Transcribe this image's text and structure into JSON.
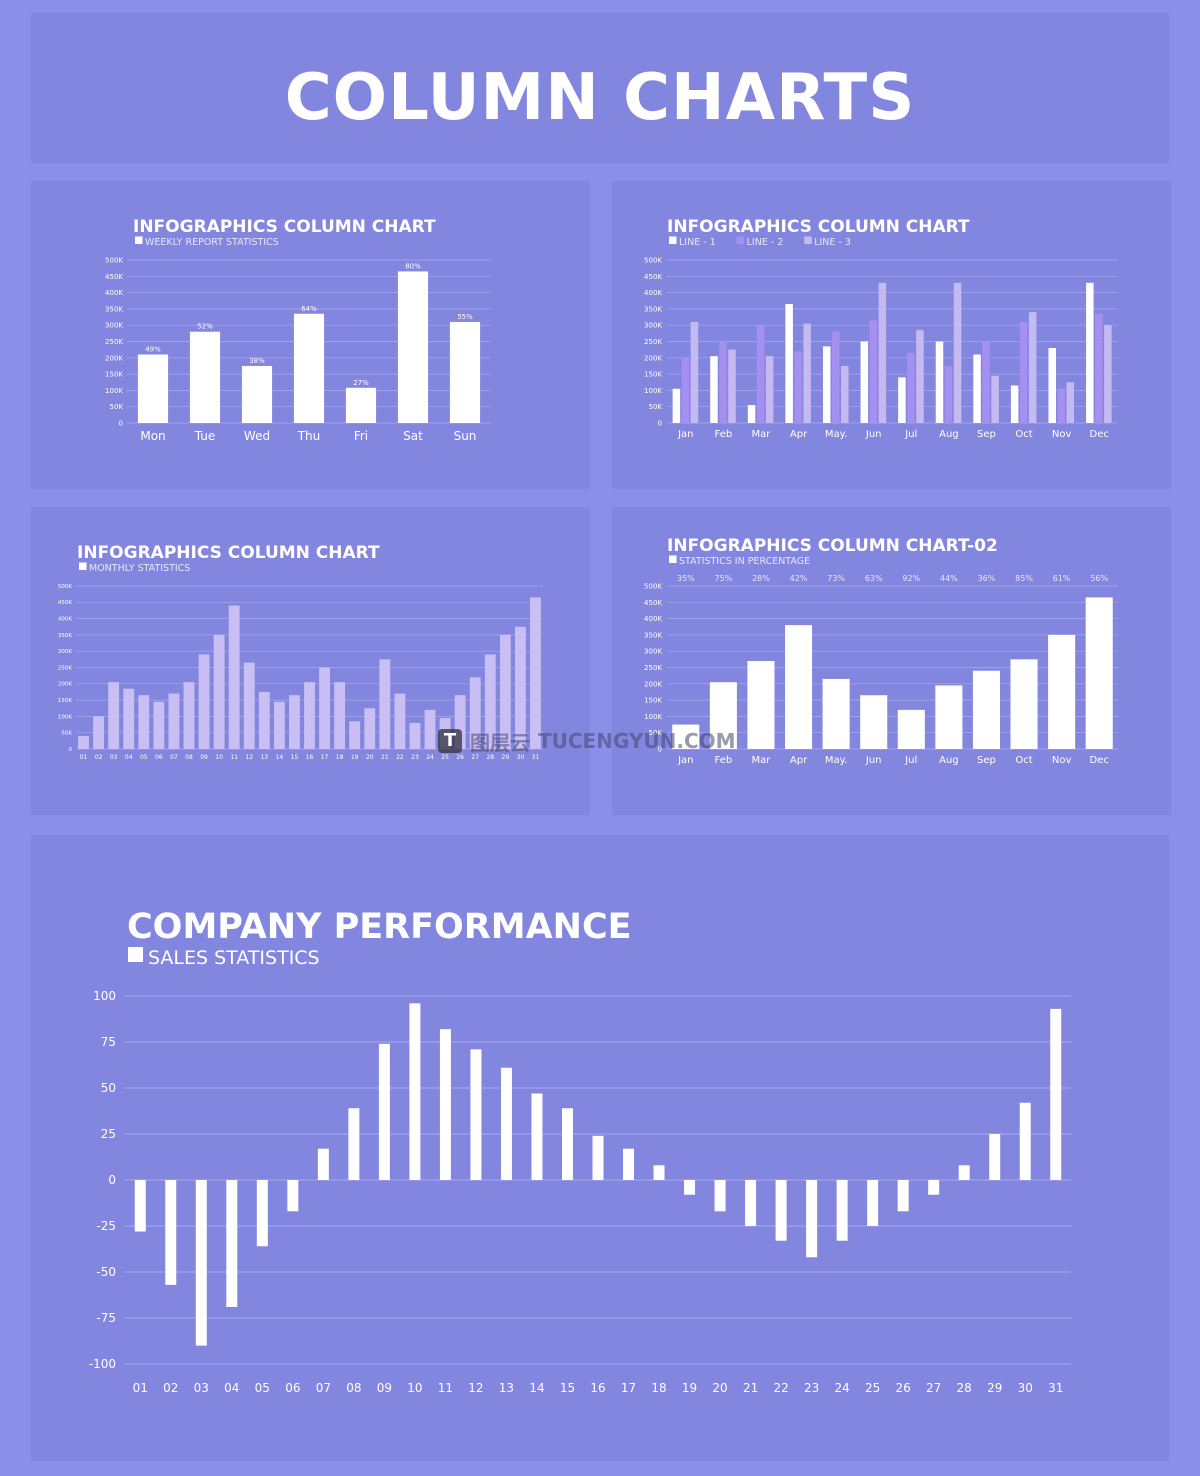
{
  "header": {
    "title": "COLUMN CHARTS"
  },
  "watermark": {
    "mark": "T",
    "cn": "图层云",
    "text": "TUCENGYUN.COM"
  },
  "colors": {
    "background": "#8a8fe9",
    "panel": "#8286df",
    "bar_white": "#ffffff",
    "line2": "#a58ff0",
    "line3": "#c5b9f2",
    "monthly_bar": "#c9bff4",
    "grid": "#a6aaf0"
  },
  "chart_data": [
    {
      "id": "weekly",
      "type": "bar",
      "title": "INFOGRAPHICS COLUMN CHART",
      "legend": [
        "WEEKLY REPORT STATISTICS"
      ],
      "y_ticks": [
        "0",
        "50K",
        "100K",
        "150K",
        "200K",
        "250K",
        "300K",
        "350K",
        "400K",
        "450K",
        "500K"
      ],
      "ylim": [
        0,
        500
      ],
      "categories": [
        "Mon",
        "Tue",
        "Wed",
        "Thu",
        "Fri",
        "Sat",
        "Sun"
      ],
      "values": [
        210,
        280,
        175,
        335,
        108,
        465,
        310
      ],
      "data_labels": [
        "49%",
        "52%",
        "38%",
        "64%",
        "27%",
        "80%",
        "55%"
      ]
    },
    {
      "id": "lines",
      "type": "bar",
      "title": "INFOGRAPHICS COLUMN CHART",
      "legend": [
        "LINE - 1",
        "LINE - 2",
        "LINE - 3"
      ],
      "y_ticks": [
        "0",
        "50K",
        "100K",
        "150K",
        "200K",
        "250K",
        "300K",
        "350K",
        "400K",
        "450K",
        "500K"
      ],
      "ylim": [
        0,
        500
      ],
      "categories": [
        "Jan",
        "Feb",
        "Mar",
        "Apr",
        "May.",
        "Jun",
        "Jul",
        "Aug",
        "Sep",
        "Oct",
        "Nov",
        "Dec"
      ],
      "series": [
        {
          "name": "LINE - 1",
          "values": [
            105,
            205,
            55,
            365,
            235,
            250,
            140,
            250,
            210,
            115,
            230,
            430
          ]
        },
        {
          "name": "LINE - 2",
          "values": [
            200,
            250,
            300,
            220,
            280,
            315,
            215,
            175,
            250,
            310,
            105,
            335
          ]
        },
        {
          "name": "LINE - 3",
          "values": [
            310,
            225,
            205,
            305,
            175,
            430,
            285,
            430,
            145,
            340,
            125,
            300
          ]
        }
      ]
    },
    {
      "id": "monthly",
      "type": "bar",
      "title": "INFOGRAPHICS COLUMN CHART",
      "legend": [
        "MONTHLY STATISTICS"
      ],
      "y_ticks": [
        "0",
        "50K",
        "100K",
        "150K",
        "200K",
        "250K",
        "300K",
        "350K",
        "400K",
        "450K",
        "500K"
      ],
      "ylim": [
        0,
        500
      ],
      "categories": [
        "01",
        "02",
        "03",
        "04",
        "05",
        "06",
        "07",
        "08",
        "09",
        "10",
        "11",
        "12",
        "13",
        "14",
        "15",
        "16",
        "17",
        "18",
        "19",
        "20",
        "21",
        "22",
        "23",
        "24",
        "25",
        "26",
        "27",
        "28",
        "29",
        "30",
        "31"
      ],
      "values": [
        40,
        100,
        205,
        185,
        165,
        145,
        170,
        205,
        290,
        350,
        440,
        265,
        175,
        145,
        165,
        205,
        250,
        205,
        85,
        125,
        275,
        170,
        80,
        120,
        95,
        165,
        220,
        290,
        350,
        375,
        465
      ]
    },
    {
      "id": "percentage",
      "type": "bar",
      "title": "INFOGRAPHICS COLUMN CHART-02",
      "legend": [
        "STATISTICS IN PERCENTAGE"
      ],
      "y_ticks": [
        "0",
        "50K",
        "100K",
        "150K",
        "200K",
        "250K",
        "300K",
        "350K",
        "400K",
        "450K",
        "500K"
      ],
      "ylim": [
        0,
        500
      ],
      "categories": [
        "Jan",
        "Feb",
        "Mar",
        "Apr",
        "May.",
        "Jun",
        "Jul",
        "Aug",
        "Sep",
        "Oct",
        "Nov",
        "Dec"
      ],
      "values": [
        75,
        205,
        270,
        380,
        215,
        165,
        120,
        195,
        240,
        275,
        350,
        465
      ],
      "top_labels": [
        "35%",
        "75%",
        "28%",
        "42%",
        "73%",
        "63%",
        "92%",
        "44%",
        "36%",
        "85%",
        "61%",
        "56%"
      ]
    },
    {
      "id": "performance",
      "type": "bar",
      "title": "COMPANY PERFORMANCE",
      "legend": [
        "SALES STATISTICS"
      ],
      "y_ticks": [
        "-100",
        "-75",
        "-50",
        "-25",
        "0",
        "25",
        "50",
        "75",
        "100"
      ],
      "ylim": [
        -100,
        100
      ],
      "categories": [
        "01",
        "02",
        "03",
        "04",
        "05",
        "06",
        "07",
        "08",
        "09",
        "10",
        "11",
        "12",
        "13",
        "14",
        "15",
        "16",
        "17",
        "18",
        "19",
        "20",
        "21",
        "22",
        "23",
        "24",
        "25",
        "26",
        "27",
        "28",
        "29",
        "30",
        "31"
      ],
      "values": [
        -28,
        -57,
        -90,
        -69,
        -36,
        -17,
        17,
        39,
        74,
        96,
        82,
        71,
        61,
        47,
        39,
        24,
        17,
        8,
        -8,
        -17,
        -25,
        -33,
        -42,
        -33,
        -25,
        -17,
        -8,
        8,
        25,
        42,
        93
      ]
    }
  ]
}
